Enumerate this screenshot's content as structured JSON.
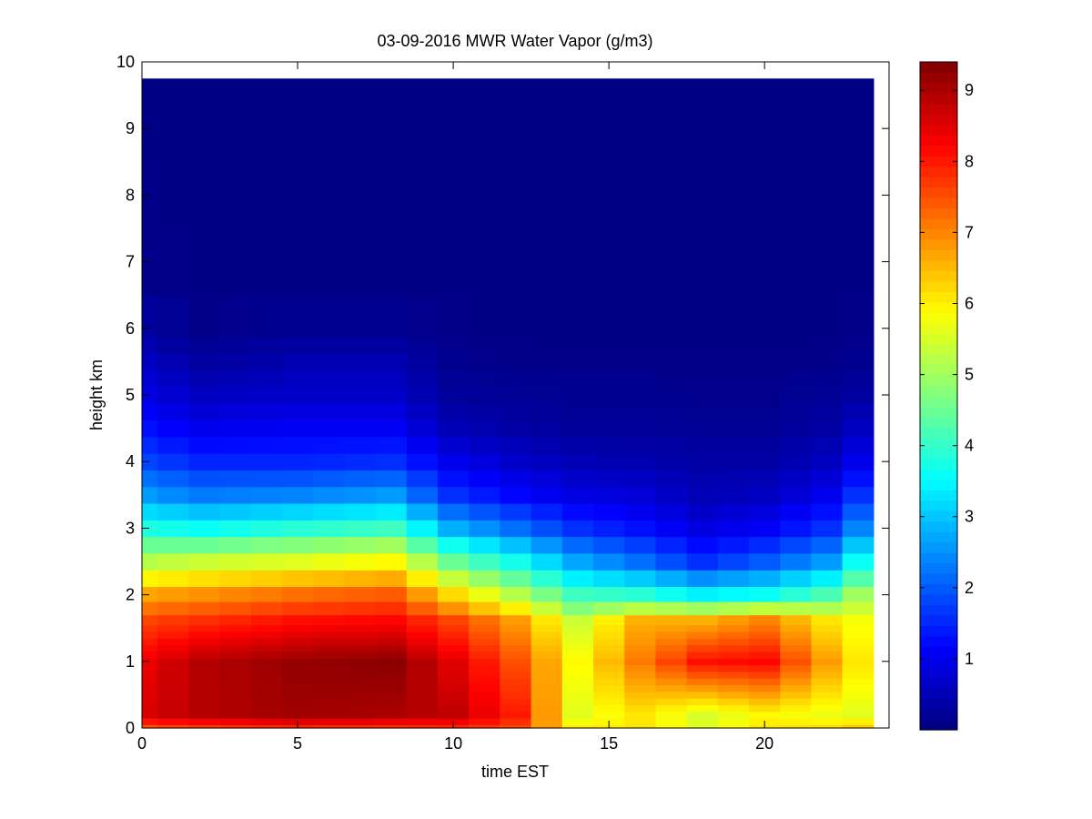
{
  "chart_data": {
    "type": "heatmap",
    "title": "03-09-2016 MWR Water Vapor (g/m3)",
    "xlabel": "time EST",
    "ylabel": "height km",
    "xlim": [
      0,
      24
    ],
    "ylim": [
      0,
      10
    ],
    "x_ticks": [
      0,
      5,
      10,
      15,
      20
    ],
    "y_ticks": [
      0,
      1,
      2,
      3,
      4,
      5,
      6,
      7,
      8,
      9,
      10
    ],
    "colorbar": {
      "colormap": "jet",
      "clim": [
        0,
        9.4
      ],
      "ticks": [
        1,
        2,
        3,
        4,
        5,
        6,
        7,
        8,
        9
      ]
    },
    "grid": false,
    "time_hours": [
      0,
      1,
      2,
      3,
      4,
      5,
      6,
      7,
      8,
      9,
      10,
      11,
      12,
      13,
      14,
      15,
      16,
      17,
      18,
      19,
      20,
      21,
      22,
      23
    ],
    "height_km": [
      0,
      0.1,
      0.2,
      0.3,
      0.4,
      0.5,
      0.6,
      0.7,
      0.8,
      0.9,
      1.0,
      1.1,
      1.2,
      1.3,
      1.4,
      1.5,
      1.6,
      1.8,
      2.0,
      2.25,
      2.5,
      2.75,
      3.0,
      3.25,
      3.5,
      3.75,
      4.0,
      4.25,
      4.5,
      4.75,
      5.0,
      5.25,
      5.5,
      5.75,
      6.0,
      7.0,
      8.0,
      9.0,
      9.75
    ],
    "profiles": [
      {
        "time_hours": 0,
        "values": {
          "0": 7.5,
          "0.2": 8.6,
          "1.0": 8.4,
          "1.6": 7.6,
          "2.0": 6.7,
          "2.5": 5.2,
          "3.0": 3.8,
          "3.5": 2.6,
          "4.0": 1.8,
          "4.5": 1.3,
          "5.0": 0.9,
          "5.5": 0.6,
          "6.0": 0.25,
          "7.0": 0.1,
          "9.75": 0.05
        }
      },
      {
        "time_hours": 2,
        "values": {
          "0": 7.7,
          "0.2": 8.9,
          "1.0": 8.9,
          "1.6": 7.8,
          "2.0": 6.9,
          "2.5": 5.4,
          "3.0": 3.6,
          "3.5": 2.3,
          "4.0": 1.5,
          "4.5": 1.0,
          "5.0": 0.6,
          "5.5": 0.3,
          "6.0": 0.1,
          "7.0": 0.06,
          "9.75": 0.05
        }
      },
      {
        "time_hours": 5,
        "values": {
          "0": 7.9,
          "0.2": 9.1,
          "1.0": 9.2,
          "1.6": 8.1,
          "2.0": 7.2,
          "2.5": 5.6,
          "3.0": 3.9,
          "3.5": 2.4,
          "4.0": 1.5,
          "4.5": 1.1,
          "5.0": 0.7,
          "5.5": 0.45,
          "6.0": 0.15,
          "7.0": 0.06,
          "9.75": 0.05
        }
      },
      {
        "time_hours": 8,
        "values": {
          "0": 7.8,
          "0.2": 9.0,
          "1.0": 9.3,
          "1.6": 8.2,
          "2.0": 7.4,
          "2.5": 5.9,
          "3.0": 4.1,
          "3.5": 2.6,
          "4.0": 1.6,
          "4.5": 1.1,
          "5.0": 0.7,
          "5.5": 0.45,
          "6.0": 0.15,
          "7.0": 0.06,
          "9.75": 0.05
        }
      },
      {
        "time_hours": 10,
        "values": {
          "0": 7.9,
          "0.2": 8.8,
          "1.0": 8.5,
          "1.6": 7.6,
          "2.0": 6.2,
          "2.5": 4.5,
          "3.0": 2.8,
          "3.5": 1.6,
          "4.0": 1.0,
          "4.5": 0.5,
          "5.0": 0.25,
          "5.5": 0.15,
          "6.0": 0.08,
          "7.0": 0.05,
          "9.75": 0.05
        }
      },
      {
        "time_hours": 12,
        "values": {
          "0": 7.6,
          "0.2": 8.0,
          "1.0": 7.5,
          "1.6": 6.8,
          "2.0": 5.2,
          "2.5": 3.7,
          "3.0": 2.2,
          "3.5": 1.2,
          "4.0": 0.7,
          "4.5": 0.35,
          "5.0": 0.2,
          "5.5": 0.1,
          "6.0": 0.06,
          "7.0": 0.05,
          "9.75": 0.05
        }
      },
      {
        "time_hours": 14,
        "values": {
          "0": 6.0,
          "0.2": 5.6,
          "1.0": 5.9,
          "1.6": 5.4,
          "2.0": 4.1,
          "2.5": 2.7,
          "3.0": 1.6,
          "3.5": 0.9,
          "4.0": 0.5,
          "4.5": 0.25,
          "5.0": 0.15,
          "5.5": 0.08,
          "6.0": 0.05,
          "7.0": 0.05,
          "9.75": 0.05
        }
      },
      {
        "time_hours": 16,
        "values": {
          "0": 6.1,
          "0.2": 6.1,
          "1.0": 7.1,
          "1.6": 6.6,
          "2.0": 3.9,
          "2.5": 2.2,
          "3.0": 1.3,
          "3.5": 0.8,
          "4.0": 0.45,
          "4.5": 0.25,
          "5.0": 0.15,
          "5.5": 0.08,
          "6.0": 0.05,
          "7.0": 0.05,
          "9.75": 0.05
        }
      },
      {
        "time_hours": 18,
        "values": {
          "0": 5.6,
          "0.2": 5.5,
          "1.0": 8.1,
          "1.6": 6.6,
          "2.0": 3.4,
          "2.5": 1.6,
          "3.0": 0.9,
          "3.5": 0.5,
          "4.0": 0.35,
          "4.5": 0.2,
          "5.0": 0.12,
          "5.5": 0.08,
          "6.0": 0.05,
          "7.0": 0.05,
          "9.75": 0.05
        }
      },
      {
        "time_hours": 20,
        "values": {
          "0": 6.1,
          "0.2": 5.9,
          "1.0": 8.2,
          "1.6": 7.0,
          "2.0": 3.6,
          "2.5": 2.0,
          "3.0": 1.1,
          "3.5": 0.6,
          "4.0": 0.35,
          "4.5": 0.2,
          "5.0": 0.12,
          "5.5": 0.08,
          "6.0": 0.05,
          "7.0": 0.05,
          "9.75": 0.05
        }
      },
      {
        "time_hours": 22,
        "values": {
          "0": 6.2,
          "0.2": 5.7,
          "1.0": 6.8,
          "1.6": 6.1,
          "2.0": 4.2,
          "2.5": 2.6,
          "3.0": 1.6,
          "3.5": 1.0,
          "4.0": 0.6,
          "4.5": 0.35,
          "5.0": 0.2,
          "5.5": 0.1,
          "6.0": 0.06,
          "7.0": 0.05,
          "9.75": 0.05
        }
      },
      {
        "time_hours": 23,
        "values": {
          "0": 6.4,
          "0.2": 5.6,
          "1.0": 6.1,
          "1.6": 5.8,
          "2.0": 5.0,
          "2.5": 3.6,
          "3.0": 2.4,
          "3.5": 1.6,
          "4.0": 1.0,
          "4.5": 0.6,
          "5.0": 0.3,
          "5.5": 0.15,
          "6.0": 0.08,
          "7.0": 0.05,
          "9.75": 0.05
        }
      }
    ]
  }
}
